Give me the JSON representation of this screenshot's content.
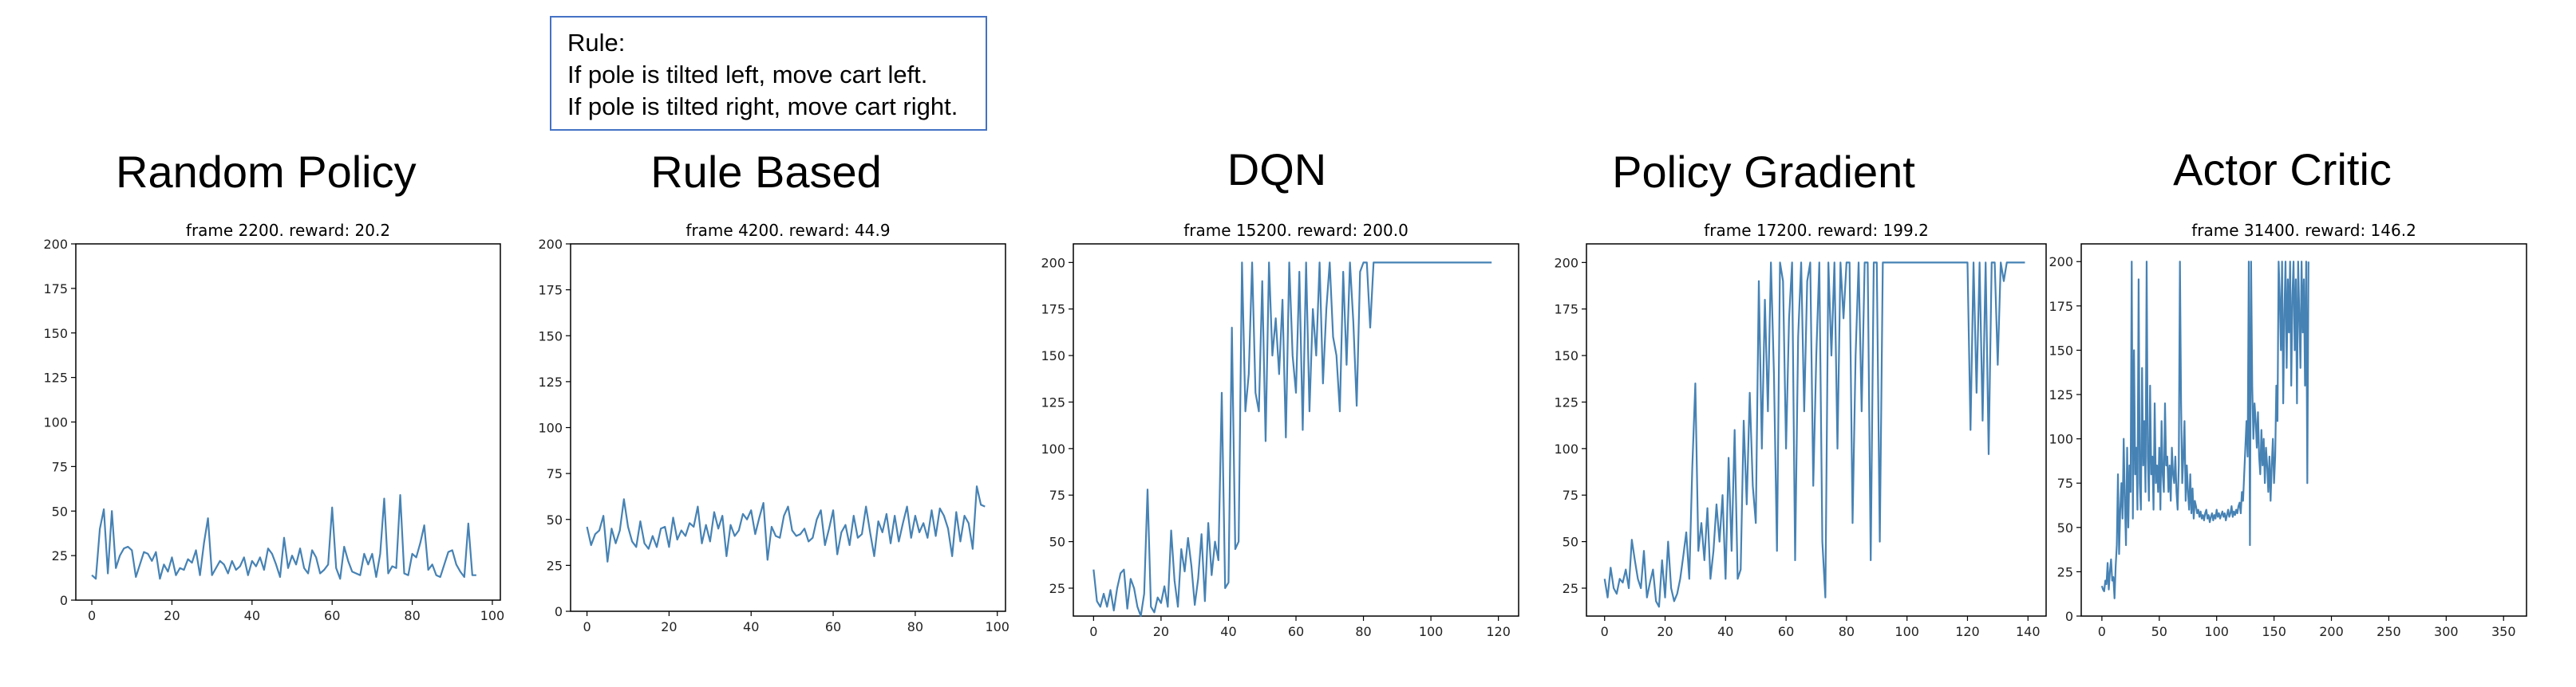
{
  "rule_box": {
    "line1": "Rule:",
    "line2": "If pole is tilted left, move cart left.",
    "line3": "If pole is tilted right, move cart right."
  },
  "colors": {
    "line": "#4682b4",
    "axes": "#000000",
    "rule_border": "#4472c4"
  },
  "chart_data": [
    {
      "type": "line",
      "panel_title": "Random Policy",
      "title": "frame 2200. reward: 20.2",
      "xlim": [
        -4,
        102
      ],
      "ylim": [
        0,
        200
      ],
      "xticks": [
        0,
        20,
        40,
        60,
        80,
        100
      ],
      "yticks": [
        0,
        25,
        50,
        75,
        100,
        125,
        150,
        175,
        200
      ],
      "y": [
        14,
        12,
        40,
        51,
        15,
        50,
        18,
        25,
        29,
        30,
        28,
        13,
        20,
        27,
        26,
        22,
        27,
        12,
        20,
        16,
        24,
        14,
        18,
        17,
        23,
        21,
        28,
        14,
        32,
        46,
        14,
        18,
        22,
        20,
        15,
        22,
        17,
        19,
        24,
        14,
        22,
        19,
        24,
        17,
        29,
        26,
        20,
        13,
        35,
        18,
        25,
        20,
        29,
        18,
        15,
        28,
        24,
        15,
        17,
        20,
        52,
        18,
        12,
        30,
        22,
        16,
        15,
        14,
        26,
        20,
        26,
        13,
        26,
        57,
        15,
        19,
        18,
        59,
        15,
        14,
        26,
        24,
        32,
        42,
        17,
        20,
        14,
        13,
        20,
        27,
        28,
        20,
        16,
        13,
        43,
        14,
        14
      ]
    },
    {
      "type": "line",
      "panel_title": "Rule Based",
      "title": "frame 4200. reward: 44.9",
      "xlim": [
        -4,
        102
      ],
      "ylim": [
        0,
        200
      ],
      "xticks": [
        0,
        20,
        40,
        60,
        80,
        100
      ],
      "yticks": [
        0,
        25,
        50,
        75,
        100,
        125,
        150,
        175,
        200
      ],
      "y": [
        46,
        36,
        42,
        44,
        52,
        27,
        45,
        37,
        44,
        61,
        46,
        38,
        35,
        49,
        37,
        34,
        41,
        35,
        45,
        46,
        35,
        51,
        39,
        44,
        41,
        48,
        46,
        57,
        37,
        47,
        38,
        54,
        45,
        52,
        30,
        47,
        41,
        44,
        53,
        50,
        55,
        42,
        51,
        59,
        28,
        46,
        41,
        40,
        52,
        57,
        44,
        41,
        42,
        45,
        38,
        40,
        50,
        55,
        36,
        45,
        55,
        31,
        43,
        47,
        36,
        52,
        40,
        42,
        57,
        43,
        30,
        49,
        43,
        53,
        37,
        52,
        38,
        48,
        57,
        40,
        52,
        43,
        48,
        40,
        55,
        41,
        56,
        52,
        45,
        30,
        54,
        38,
        52,
        48,
        34,
        68,
        58,
        57
      ]
    },
    {
      "type": "line",
      "panel_title": "DQN",
      "title": "frame 15200. reward: 200.0",
      "xlim": [
        -6,
        126
      ],
      "ylim": [
        10,
        210
      ],
      "xticks": [
        0,
        20,
        40,
        60,
        80,
        100,
        120
      ],
      "yticks": [
        25,
        50,
        75,
        100,
        125,
        150,
        175,
        200
      ],
      "y": [
        35,
        18,
        15,
        22,
        15,
        24,
        13,
        25,
        33,
        35,
        14,
        30,
        25,
        15,
        10,
        22,
        78,
        15,
        12,
        20,
        17,
        26,
        15,
        56,
        29,
        15,
        46,
        34,
        52,
        37,
        16,
        30,
        54,
        18,
        60,
        32,
        50,
        40,
        130,
        25,
        28,
        165,
        46,
        50,
        200,
        120,
        140,
        200,
        130,
        120,
        190,
        104,
        200,
        150,
        170,
        140,
        180,
        106,
        200,
        150,
        130,
        195,
        110,
        200,
        120,
        175,
        150,
        200,
        135,
        175,
        200,
        160,
        150,
        120,
        195,
        145,
        200,
        168,
        123,
        195,
        200,
        200,
        165,
        200,
        200,
        200,
        200,
        200,
        200,
        200,
        200,
        200,
        200,
        200,
        200,
        200,
        200,
        200,
        200,
        200,
        200,
        200,
        200,
        200,
        200,
        200,
        200,
        200,
        200,
        200,
        200,
        200,
        200,
        200,
        200,
        200,
        200,
        200,
        200
      ]
    },
    {
      "type": "line",
      "panel_title": "Policy Gradient",
      "title": "frame 17200. reward: 199.2",
      "xlim": [
        -6,
        146
      ],
      "ylim": [
        10,
        210
      ],
      "xticks": [
        0,
        20,
        40,
        60,
        80,
        100,
        120,
        140
      ],
      "yticks": [
        25,
        50,
        75,
        100,
        125,
        150,
        175,
        200
      ],
      "y": [
        30,
        20,
        36,
        25,
        22,
        30,
        28,
        35,
        25,
        51,
        40,
        30,
        25,
        45,
        20,
        28,
        35,
        18,
        15,
        40,
        20,
        50,
        25,
        18,
        22,
        30,
        42,
        55,
        30,
        90,
        135,
        45,
        60,
        40,
        68,
        30,
        45,
        70,
        50,
        75,
        30,
        95,
        45,
        110,
        30,
        35,
        115,
        70,
        130,
        80,
        60,
        190,
        100,
        180,
        120,
        200,
        140,
        45,
        200,
        190,
        100,
        170,
        200,
        40,
        160,
        200,
        120,
        190,
        200,
        80,
        150,
        200,
        50,
        20,
        200,
        150,
        200,
        100,
        200,
        170,
        200,
        200,
        60,
        150,
        200,
        120,
        200,
        200,
        40,
        200,
        200,
        50,
        200,
        200,
        200,
        200,
        200,
        200,
        200,
        200,
        200,
        200,
        200,
        200,
        200,
        200,
        200,
        200,
        200,
        200,
        200,
        200,
        200,
        200,
        200,
        200,
        200,
        200,
        200,
        200,
        200,
        110,
        200,
        130,
        200,
        115,
        200,
        97,
        200,
        200,
        145,
        200,
        190,
        200,
        200,
        200,
        200,
        200,
        200,
        200
      ]
    },
    {
      "type": "line",
      "panel_title": "Actor Critic",
      "title": "frame 31400. reward: 146.2",
      "xlim": [
        -18,
        370
      ],
      "ylim": [
        0,
        210
      ],
      "xticks": [
        0,
        50,
        100,
        150,
        200,
        250,
        300,
        350
      ],
      "yticks": [
        0,
        25,
        50,
        75,
        100,
        125,
        150,
        175,
        200
      ],
      "y": [
        17,
        15,
        14,
        20,
        18,
        30,
        15,
        25,
        32,
        20,
        22,
        10,
        28,
        40,
        80,
        35,
        60,
        75,
        55,
        100,
        65,
        40,
        95,
        50,
        85,
        70,
        200,
        55,
        150,
        80,
        95,
        60,
        190,
        75,
        60,
        140,
        85,
        110,
        70,
        200,
        90,
        65,
        130,
        80,
        90,
        60,
        120,
        75,
        85,
        70,
        95,
        60,
        110,
        80,
        70,
        120,
        85,
        90,
        70,
        85,
        65,
        95,
        80,
        75,
        90,
        70,
        60,
        85,
        200,
        120,
        75,
        90,
        110,
        65,
        85,
        70,
        60,
        80,
        58,
        72,
        55,
        65,
        62,
        58,
        60,
        56,
        59,
        55,
        57,
        54,
        58,
        60,
        55,
        57,
        53,
        56,
        58,
        54,
        57,
        55,
        60,
        56,
        58,
        55,
        57,
        59,
        56,
        58,
        54,
        57,
        60,
        56,
        58,
        62,
        56,
        59,
        57,
        60,
        58,
        62,
        64,
        58,
        70,
        65,
        80,
        95,
        110,
        90,
        200,
        40,
        200,
        130,
        100,
        120,
        110,
        95,
        115,
        90,
        80,
        105,
        85,
        100,
        75,
        95,
        85,
        70,
        90,
        65,
        85,
        100,
        75,
        90,
        130,
        110,
        200,
        180,
        150,
        200,
        120,
        170,
        200,
        140,
        190,
        160,
        200,
        130,
        180,
        200,
        150,
        190,
        120,
        200,
        170,
        140,
        200,
        160,
        190,
        130,
        200,
        75,
        200
      ]
    }
  ]
}
